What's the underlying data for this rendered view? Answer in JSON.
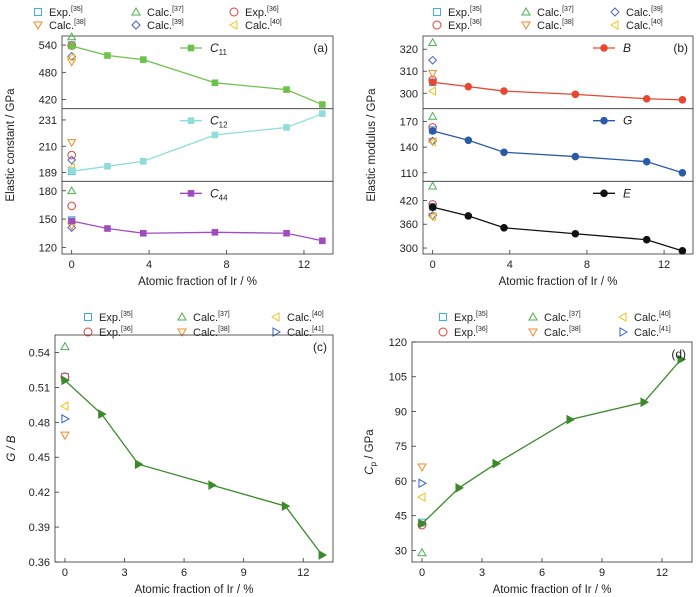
{
  "chart_data": [
    {
      "panel": "(a)",
      "type": "line",
      "ylabel": "Elastic constant / GPa",
      "xlabel": "Atomic fraction of Ir / %",
      "xticks": [
        "0",
        "4",
        "8",
        "12"
      ],
      "xlim": [
        -0.5,
        13.5
      ],
      "legend": {
        "items": [
          {
            "label": "Exp.",
            "ref": "[35]",
            "marker": "square",
            "color": "#3fb0e0"
          },
          {
            "label": "Calc.",
            "ref": "[37]",
            "marker": "triangle-up",
            "color": "#4caf50"
          },
          {
            "label": "Exp.",
            "ref": "[36]",
            "marker": "circle",
            "color": "#e0403a"
          },
          {
            "label": "Calc.",
            "ref": "[38]",
            "marker": "triangle-down",
            "color": "#f08a28"
          },
          {
            "label": "Calc.",
            "ref": "[39]",
            "marker": "diamond",
            "color": "#5060c8"
          },
          {
            "label": "Calc.",
            "ref": "[40]",
            "marker": "triangle-left",
            "color": "#f0c020"
          }
        ]
      },
      "subpanels": [
        {
          "series_label": "C",
          "series_sub": "11",
          "color": "#6cc24a",
          "marker": "square",
          "ylim": [
            400,
            560
          ],
          "yticks": [
            "420",
            "480",
            "540"
          ],
          "x": [
            0,
            1.85,
            3.7,
            7.4,
            11.1,
            12.95
          ],
          "values": [
            538,
            517,
            508,
            457,
            442,
            409
          ],
          "refs": [
            {
              "marker": "square",
              "color": "#3fb0e0",
              "x": 0,
              "y": 540
            },
            {
              "marker": "circle",
              "color": "#e0403a",
              "x": 0,
              "y": 539
            },
            {
              "marker": "triangle-up",
              "color": "#4caf50",
              "x": 0,
              "y": 558
            },
            {
              "marker": "triangle-down",
              "color": "#f08a28",
              "x": 0,
              "y": 503
            },
            {
              "marker": "diamond",
              "color": "#5060c8",
              "x": 0,
              "y": 515
            },
            {
              "marker": "triangle-left",
              "color": "#f0c020",
              "x": 0,
              "y": 512
            }
          ]
        },
        {
          "series_label": "C",
          "series_sub": "12",
          "color": "#8fdcdc",
          "marker": "square",
          "ylim": [
            182,
            240
          ],
          "yticks": [
            "189",
            "210",
            "231"
          ],
          "x": [
            0,
            1.85,
            3.7,
            7.4,
            11.1,
            12.95
          ],
          "values": [
            190,
            194,
            198,
            219,
            225,
            236
          ],
          "refs": [
            {
              "marker": "square",
              "color": "#3fb0e0",
              "x": 0,
              "y": 190
            },
            {
              "marker": "circle",
              "color": "#e0403a",
              "x": 0,
              "y": 203
            },
            {
              "marker": "triangle-down",
              "color": "#f08a28",
              "x": 0,
              "y": 213
            },
            {
              "marker": "diamond",
              "color": "#5060c8",
              "x": 0,
              "y": 199
            },
            {
              "marker": "triangle-left",
              "color": "#f0c020",
              "x": 0,
              "y": 193
            }
          ]
        },
        {
          "series_label": "C",
          "series_sub": "44",
          "color": "#a04cc0",
          "marker": "square",
          "ylim": [
            113,
            190
          ],
          "yticks": [
            "120",
            "150",
            "180"
          ],
          "x": [
            0,
            1.85,
            3.7,
            7.4,
            11.1,
            12.95
          ],
          "values": [
            148,
            140,
            135,
            136,
            135,
            127
          ],
          "refs": [
            {
              "marker": "square",
              "color": "#3fb0e0",
              "x": 0,
              "y": 149
            },
            {
              "marker": "circle",
              "color": "#e0403a",
              "x": 0,
              "y": 164
            },
            {
              "marker": "triangle-up",
              "color": "#4caf50",
              "x": 0,
              "y": 180
            },
            {
              "marker": "triangle-down",
              "color": "#f08a28",
              "x": 0,
              "y": 143
            },
            {
              "marker": "diamond",
              "color": "#5060c8",
              "x": 0,
              "y": 141
            },
            {
              "marker": "triangle-left",
              "color": "#f0c020",
              "x": 0,
              "y": 147
            }
          ]
        }
      ]
    },
    {
      "panel": "(b)",
      "type": "line",
      "ylabel": "Elastic modulus / GPa",
      "xlabel": "Atomic fraction of Ir / %",
      "xticks": [
        "0",
        "4",
        "8",
        "12"
      ],
      "xlim": [
        -0.5,
        13.5
      ],
      "legend": {
        "items": [
          {
            "label": "Exp.",
            "ref": "[35]",
            "marker": "square",
            "color": "#3fb0e0"
          },
          {
            "label": "Calc.",
            "ref": "[37]",
            "marker": "triangle-up",
            "color": "#4caf50"
          },
          {
            "label": "Calc.",
            "ref": "[39]",
            "marker": "diamond",
            "color": "#5060c8"
          },
          {
            "label": "Exp.",
            "ref": "[36]",
            "marker": "circle",
            "color": "#e0403a"
          },
          {
            "label": "Calc.",
            "ref": "[38]",
            "marker": "triangle-down",
            "color": "#f08a28"
          },
          {
            "label": "Calc.",
            "ref": "[40]",
            "marker": "triangle-left",
            "color": "#f0c020"
          }
        ]
      },
      "subpanels": [
        {
          "series_label": "B",
          "color": "#e8472f",
          "marker": "circle",
          "ylim": [
            293,
            326
          ],
          "yticks": [
            "300",
            "310",
            "320"
          ],
          "x": [
            0,
            1.85,
            3.7,
            7.4,
            11.1,
            12.95
          ],
          "values": [
            305,
            303,
            301,
            299.5,
            297.5,
            297
          ],
          "refs": [
            {
              "marker": "square",
              "color": "#3fb0e0",
              "x": 0,
              "y": 305
            },
            {
              "marker": "circle",
              "color": "#e0403a",
              "x": 0,
              "y": 306
            },
            {
              "marker": "triangle-up",
              "color": "#4caf50",
              "x": 0,
              "y": 323
            },
            {
              "marker": "triangle-down",
              "color": "#f08a28",
              "x": 0,
              "y": 309
            },
            {
              "marker": "diamond",
              "color": "#5060c8",
              "x": 0,
              "y": 315
            },
            {
              "marker": "triangle-left",
              "color": "#f0c020",
              "x": 0,
              "y": 301
            }
          ]
        },
        {
          "series_label": "G",
          "color": "#2a5aa8",
          "marker": "circle",
          "ylim": [
            100,
            185
          ],
          "yticks": [
            "110",
            "140",
            "170"
          ],
          "x": [
            0,
            1.85,
            3.7,
            7.4,
            11.1,
            12.95
          ],
          "values": [
            159,
            148,
            134,
            129,
            123,
            110
          ],
          "refs": [
            {
              "marker": "square",
              "color": "#3fb0e0",
              "x": 0,
              "y": 160
            },
            {
              "marker": "circle",
              "color": "#e0403a",
              "x": 0,
              "y": 163
            },
            {
              "marker": "triangle-up",
              "color": "#4caf50",
              "x": 0,
              "y": 176
            },
            {
              "marker": "triangle-down",
              "color": "#f08a28",
              "x": 0,
              "y": 147
            },
            {
              "marker": "diamond",
              "color": "#5060c8",
              "x": 0,
              "y": 147
            },
            {
              "marker": "triangle-left",
              "color": "#f0c020",
              "x": 0,
              "y": 146
            }
          ]
        },
        {
          "series_label": "E",
          "color": "#111111",
          "marker": "circle",
          "ylim": [
            285,
            468
          ],
          "yticks": [
            "300",
            "360",
            "420"
          ],
          "x": [
            0,
            1.85,
            3.7,
            7.4,
            11.1,
            12.95
          ],
          "values": [
            403,
            381,
            351,
            336,
            321,
            293
          ],
          "refs": [
            {
              "marker": "square",
              "color": "#3fb0e0",
              "x": 0,
              "y": 404
            },
            {
              "marker": "circle",
              "color": "#e0403a",
              "x": 0,
              "y": 410
            },
            {
              "marker": "triangle-up",
              "color": "#4caf50",
              "x": 0,
              "y": 456
            },
            {
              "marker": "triangle-down",
              "color": "#f08a28",
              "x": 0,
              "y": 380
            },
            {
              "marker": "diamond",
              "color": "#5060c8",
              "x": 0,
              "y": 382
            },
            {
              "marker": "triangle-left",
              "color": "#f0c020",
              "x": 0,
              "y": 379
            }
          ]
        }
      ]
    },
    {
      "panel": "(c)",
      "type": "line",
      "ylabel": "G / B",
      "xlabel": "Atomic fraction of Ir / %",
      "xticks": [
        "0",
        "3",
        "6",
        "9",
        "12"
      ],
      "xlim": [
        -0.5,
        13.5
      ],
      "ylim": [
        0.36,
        0.555
      ],
      "yticks": [
        "0.36",
        "0.39",
        "0.42",
        "0.45",
        "0.48",
        "0.51",
        "0.54"
      ],
      "color": "#3a8a2a",
      "marker": "triangle-right",
      "legend": {
        "items": [
          {
            "label": "Exp.",
            "ref": "[35]",
            "marker": "square",
            "color": "#3fb0e0"
          },
          {
            "label": "Calc.",
            "ref": "[37]",
            "marker": "triangle-up",
            "color": "#4caf50"
          },
          {
            "label": "Calc.",
            "ref": "[40]",
            "marker": "triangle-left",
            "color": "#f0c020"
          },
          {
            "label": "Exp.",
            "ref": "[36]",
            "marker": "circle",
            "color": "#e0403a"
          },
          {
            "label": "Calc.",
            "ref": "[38]",
            "marker": "triangle-down",
            "color": "#f08a28"
          },
          {
            "label": "Calc.",
            "ref": "[41]",
            "marker": "triangle-right",
            "color": "#3060d0"
          }
        ]
      },
      "x": [
        0,
        1.85,
        3.7,
        7.4,
        11.1,
        12.95
      ],
      "values": [
        0.516,
        0.487,
        0.444,
        0.426,
        0.408,
        0.366
      ],
      "refs": [
        {
          "marker": "square",
          "color": "#3fb0e0",
          "x": 0,
          "y": 0.519
        },
        {
          "marker": "circle",
          "color": "#e0403a",
          "x": 0,
          "y": 0.519
        },
        {
          "marker": "triangle-up",
          "color": "#4caf50",
          "x": 0,
          "y": 0.545
        },
        {
          "marker": "triangle-down",
          "color": "#f08a28",
          "x": 0,
          "y": 0.469
        },
        {
          "marker": "triangle-left",
          "color": "#f0c020",
          "x": 0,
          "y": 0.494
        },
        {
          "marker": "triangle-right",
          "color": "#3060d0",
          "x": 0,
          "y": 0.483
        }
      ]
    },
    {
      "panel": "(d)",
      "type": "line",
      "ylabel": "C",
      "ylabel_sub": "p",
      "ylabel_unit": " / GPa",
      "xlabel": "Atomic fraction of Ir / %",
      "xticks": [
        "0",
        "3",
        "6",
        "9",
        "12"
      ],
      "xlim": [
        -0.5,
        13.5
      ],
      "ylim": [
        25,
        120
      ],
      "yticks": [
        "30",
        "45",
        "60",
        "75",
        "90",
        "105",
        "120"
      ],
      "color": "#3a8a2a",
      "marker": "triangle-right",
      "legend": {
        "items": [
          {
            "label": "Exp.",
            "ref": "[35]",
            "marker": "square",
            "color": "#3fb0e0"
          },
          {
            "label": "Calc.",
            "ref": "[37]",
            "marker": "triangle-up",
            "color": "#4caf50"
          },
          {
            "label": "Calc.",
            "ref": "[40]",
            "marker": "triangle-left",
            "color": "#f0c020"
          },
          {
            "label": "Exp.",
            "ref": "[36]",
            "marker": "circle",
            "color": "#e0403a"
          },
          {
            "label": "Calc.",
            "ref": "[38]",
            "marker": "triangle-down",
            "color": "#f08a28"
          },
          {
            "label": "Calc.",
            "ref": "[41]",
            "marker": "triangle-right",
            "color": "#3060d0"
          }
        ]
      },
      "x": [
        0,
        1.85,
        3.7,
        7.4,
        11.1,
        12.95
      ],
      "values": [
        41.5,
        57,
        67.5,
        86.5,
        94,
        112.5
      ],
      "refs": [
        {
          "marker": "square",
          "color": "#3fb0e0",
          "x": 0,
          "y": 42
        },
        {
          "marker": "circle",
          "color": "#e0403a",
          "x": 0,
          "y": 41
        },
        {
          "marker": "triangle-up",
          "color": "#4caf50",
          "x": 0,
          "y": 29
        },
        {
          "marker": "triangle-down",
          "color": "#f08a28",
          "x": 0,
          "y": 66
        },
        {
          "marker": "triangle-left",
          "color": "#f0c020",
          "x": 0,
          "y": 53
        },
        {
          "marker": "triangle-right",
          "color": "#3060d0",
          "x": 0,
          "y": 59
        }
      ]
    }
  ]
}
